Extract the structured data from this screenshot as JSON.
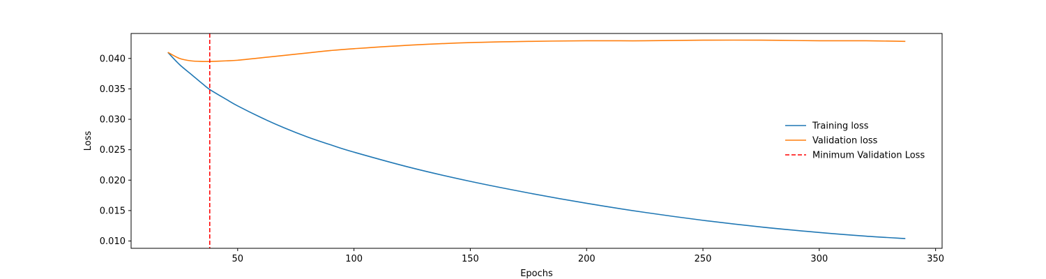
{
  "chart_data": {
    "type": "line",
    "title": "",
    "xlabel": "Epochs",
    "ylabel": "Loss",
    "xlim": [
      4.2,
      352.8
    ],
    "ylim": [
      0.0088,
      0.0441
    ],
    "xticks": [
      50,
      100,
      150,
      200,
      250,
      300,
      350
    ],
    "yticks": [
      0.01,
      0.015,
      0.02,
      0.025,
      0.03,
      0.035,
      0.04
    ],
    "ytick_labels": [
      "0.010",
      "0.015",
      "0.020",
      "0.025",
      "0.030",
      "0.035",
      "0.040"
    ],
    "grid": false,
    "legend_location": "center-right",
    "series": [
      {
        "name": "Training loss",
        "color": "#1f77b4",
        "style": "solid",
        "x": [
          20,
          25,
          30,
          35,
          38,
          45,
          50,
          60,
          70,
          80,
          90,
          100,
          125,
          150,
          175,
          200,
          225,
          250,
          275,
          300,
          320,
          337
        ],
        "y": [
          0.041,
          0.039,
          0.0374,
          0.0358,
          0.0349,
          0.0333,
          0.0322,
          0.0303,
          0.0286,
          0.0271,
          0.0258,
          0.0246,
          0.022,
          0.0198,
          0.0179,
          0.0162,
          0.0147,
          0.0134,
          0.0123,
          0.0114,
          0.0108,
          0.0104
        ]
      },
      {
        "name": "Validation loss",
        "color": "#ff7f0e",
        "style": "solid",
        "x": [
          20,
          25,
          30,
          35,
          38,
          45,
          50,
          60,
          70,
          80,
          90,
          100,
          125,
          150,
          175,
          200,
          225,
          250,
          275,
          300,
          320,
          337
        ],
        "y": [
          0.041,
          0.04,
          0.0396,
          0.0395,
          0.0395,
          0.0396,
          0.0397,
          0.0401,
          0.0405,
          0.0409,
          0.0413,
          0.0416,
          0.0422,
          0.0426,
          0.0428,
          0.0429,
          0.0429,
          0.043,
          0.043,
          0.0429,
          0.0429,
          0.0428
        ]
      }
    ],
    "vlines": [
      {
        "name": "Minimum Validation Loss",
        "x": 38,
        "color": "#ff0000",
        "style": "dashed"
      }
    ]
  }
}
